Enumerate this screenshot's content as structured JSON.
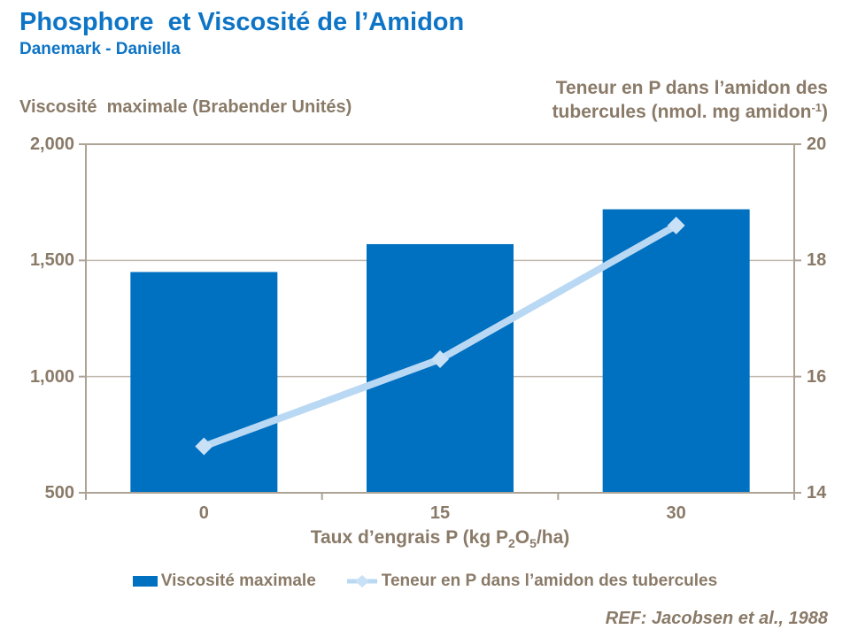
{
  "header": {
    "title": "Phosphore  et Viscosité de l’Amidon",
    "subtitle": "Danemark - Daniella"
  },
  "axes": {
    "left_title": "Viscosité  maximale (Brabender Unités)",
    "right_title_line1": "Teneur en P dans l’amidon des",
    "right_title_line2_pre": "tubercules (nmol. mg amidon",
    "right_title_line2_sup": "-1",
    "right_title_line2_post": ")",
    "x_title_part1": "Taux d’engrais P (kg P",
    "x_title_sub1": "2",
    "x_title_part2": "O",
    "x_title_sub2": "5",
    "x_title_part3": "/ha)"
  },
  "legend": {
    "items": [
      {
        "label": "Viscosité maximale",
        "swatch": "bar-square",
        "color": "#0070C0"
      },
      {
        "label": "Teneur en P dans l’amidon des tubercules",
        "swatch": "line-diamond",
        "color": "#BCD9F4"
      }
    ]
  },
  "footer": {
    "reference": "REF: Jacobsen et al., 1988"
  },
  "colors": {
    "title_blue": "#0D74C6",
    "bar_blue": "#0070C0",
    "line_light_blue": "#B9D8F3",
    "marker_light_blue": "#C9E1F7",
    "text_taupe": "#8A7A68",
    "frame": "#ACA396",
    "gridline": "#C0B7AB"
  },
  "chart_data": {
    "type": "combo-bar-line",
    "categories": [
      "0",
      "15",
      "30"
    ],
    "series": [
      {
        "name": "Viscosité maximale",
        "type": "bar",
        "axis": "left",
        "color": "#0070C0",
        "values": [
          1450,
          1570,
          1720
        ]
      },
      {
        "name": "Teneur en P dans l’amidon des tubercules",
        "type": "line",
        "axis": "right",
        "color": "#B9D8F3",
        "marker": "diamond",
        "values": [
          14.8,
          16.3,
          18.6
        ]
      }
    ],
    "left_axis": {
      "label": "Viscosité maximale (Brabender Unités)",
      "min": 500,
      "max": 2000,
      "tick_values": [
        2000,
        1500,
        1000,
        500
      ],
      "tick_labels": [
        "2,000",
        "1,500",
        "1,000",
        "500"
      ]
    },
    "right_axis": {
      "label": "Teneur en P dans l’amidon des tubercules (nmol. mg amidon-1)",
      "min": 14,
      "max": 20,
      "tick_values": [
        20,
        18,
        16,
        14
      ],
      "tick_labels": [
        "20",
        "18",
        "16",
        "14"
      ]
    },
    "x_axis": {
      "label": "Taux d’engrais P (kg P2O5/ha)",
      "tick_labels": [
        "0",
        "15",
        "30"
      ]
    },
    "grid": "horizontal",
    "legend_position": "bottom",
    "source": "REF: Jacobsen et al., 1988"
  }
}
